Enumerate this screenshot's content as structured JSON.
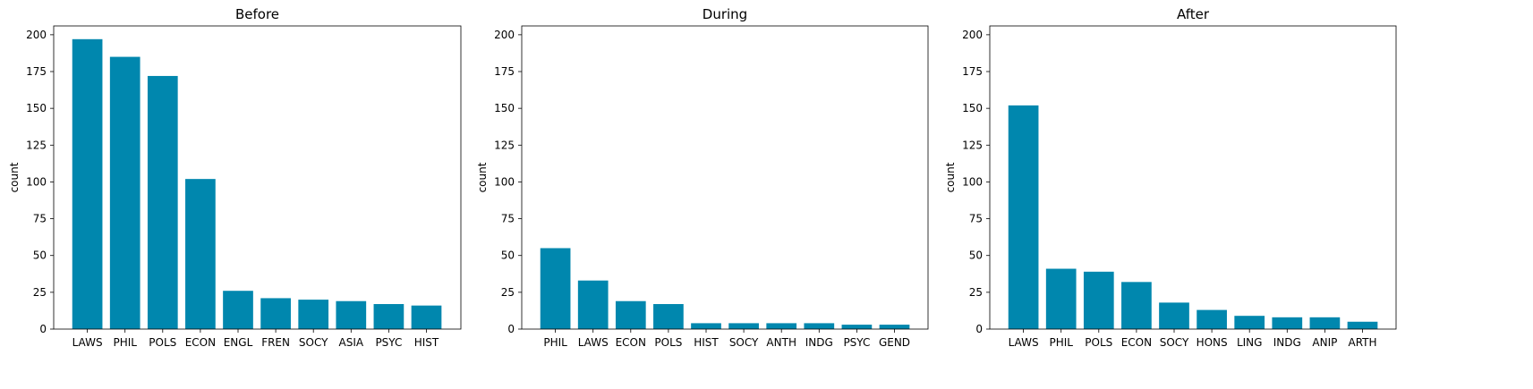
{
  "chart_data": [
    {
      "type": "bar",
      "title": "Before",
      "ylabel": "count",
      "xlabel": "",
      "ylim": [
        0,
        206
      ],
      "yticks": [
        0,
        25,
        50,
        75,
        100,
        125,
        150,
        175,
        200
      ],
      "categories": [
        "LAWS",
        "PHIL",
        "POLS",
        "ECON",
        "ENGL",
        "FREN",
        "SOCY",
        "ASIA",
        "PSYC",
        "HIST"
      ],
      "values": [
        197,
        185,
        172,
        102,
        26,
        21,
        20,
        19,
        17,
        16
      ]
    },
    {
      "type": "bar",
      "title": "During",
      "ylabel": "count",
      "xlabel": "",
      "ylim": [
        0,
        206
      ],
      "yticks": [
        0,
        25,
        50,
        75,
        100,
        125,
        150,
        175,
        200
      ],
      "categories": [
        "PHIL",
        "LAWS",
        "ECON",
        "POLS",
        "HIST",
        "SOCY",
        "ANTH",
        "INDG",
        "PSYC",
        "GEND"
      ],
      "values": [
        55,
        33,
        19,
        17,
        4,
        4,
        4,
        4,
        3,
        3
      ]
    },
    {
      "type": "bar",
      "title": "After",
      "ylabel": "count",
      "xlabel": "",
      "ylim": [
        0,
        206
      ],
      "yticks": [
        0,
        25,
        50,
        75,
        100,
        125,
        150,
        175,
        200
      ],
      "categories": [
        "LAWS",
        "PHIL",
        "POLS",
        "ECON",
        "SOCY",
        "HONS",
        "LING",
        "INDG",
        "ANIP",
        "ARTH"
      ],
      "values": [
        152,
        41,
        39,
        32,
        18,
        13,
        9,
        8,
        8,
        5
      ]
    }
  ],
  "colors": {
    "bar": "#0087ae",
    "axis": "#000000",
    "background": "#ffffff"
  }
}
